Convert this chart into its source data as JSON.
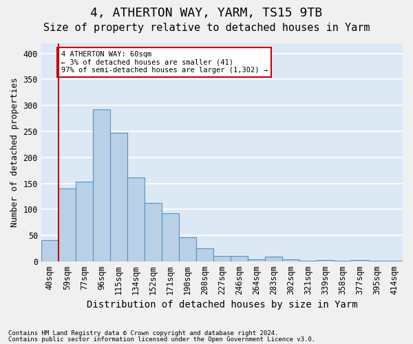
{
  "title": "4, ATHERTON WAY, YARM, TS15 9TB",
  "subtitle": "Size of property relative to detached houses in Yarm",
  "xlabel": "Distribution of detached houses by size in Yarm",
  "ylabel": "Number of detached properties",
  "footnote1": "Contains HM Land Registry data © Crown copyright and database right 2024.",
  "footnote2": "Contains public sector information licensed under the Open Government Licence v3.0.",
  "categories": [
    "40sqm",
    "59sqm",
    "77sqm",
    "96sqm",
    "115sqm",
    "134sqm",
    "152sqm",
    "171sqm",
    "190sqm",
    "208sqm",
    "227sqm",
    "246sqm",
    "264sqm",
    "283sqm",
    "302sqm",
    "321sqm",
    "339sqm",
    "358sqm",
    "377sqm",
    "395sqm",
    "414sqm"
  ],
  "values": [
    41,
    140,
    154,
    293,
    248,
    161,
    112,
    93,
    46,
    25,
    10,
    10,
    4,
    9,
    4,
    1,
    3,
    2,
    3,
    2,
    2
  ],
  "bar_color": "#b8d0e8",
  "bar_edge_color": "#5a8fc0",
  "background_color": "#dde8f5",
  "grid_color": "#ffffff",
  "vline_color": "#cc0000",
  "annotation_text": "4 ATHERTON WAY: 60sqm\n← 3% of detached houses are smaller (41)\n97% of semi-detached houses are larger (1,302) →",
  "annotation_box_color": "#cc0000",
  "ylim": [
    0,
    420
  ],
  "yticks": [
    0,
    50,
    100,
    150,
    200,
    250,
    300,
    350,
    400
  ],
  "title_fontsize": 13,
  "subtitle_fontsize": 11,
  "axis_fontsize": 9,
  "tick_fontsize": 8.5,
  "footnote_fontsize": 6.5
}
